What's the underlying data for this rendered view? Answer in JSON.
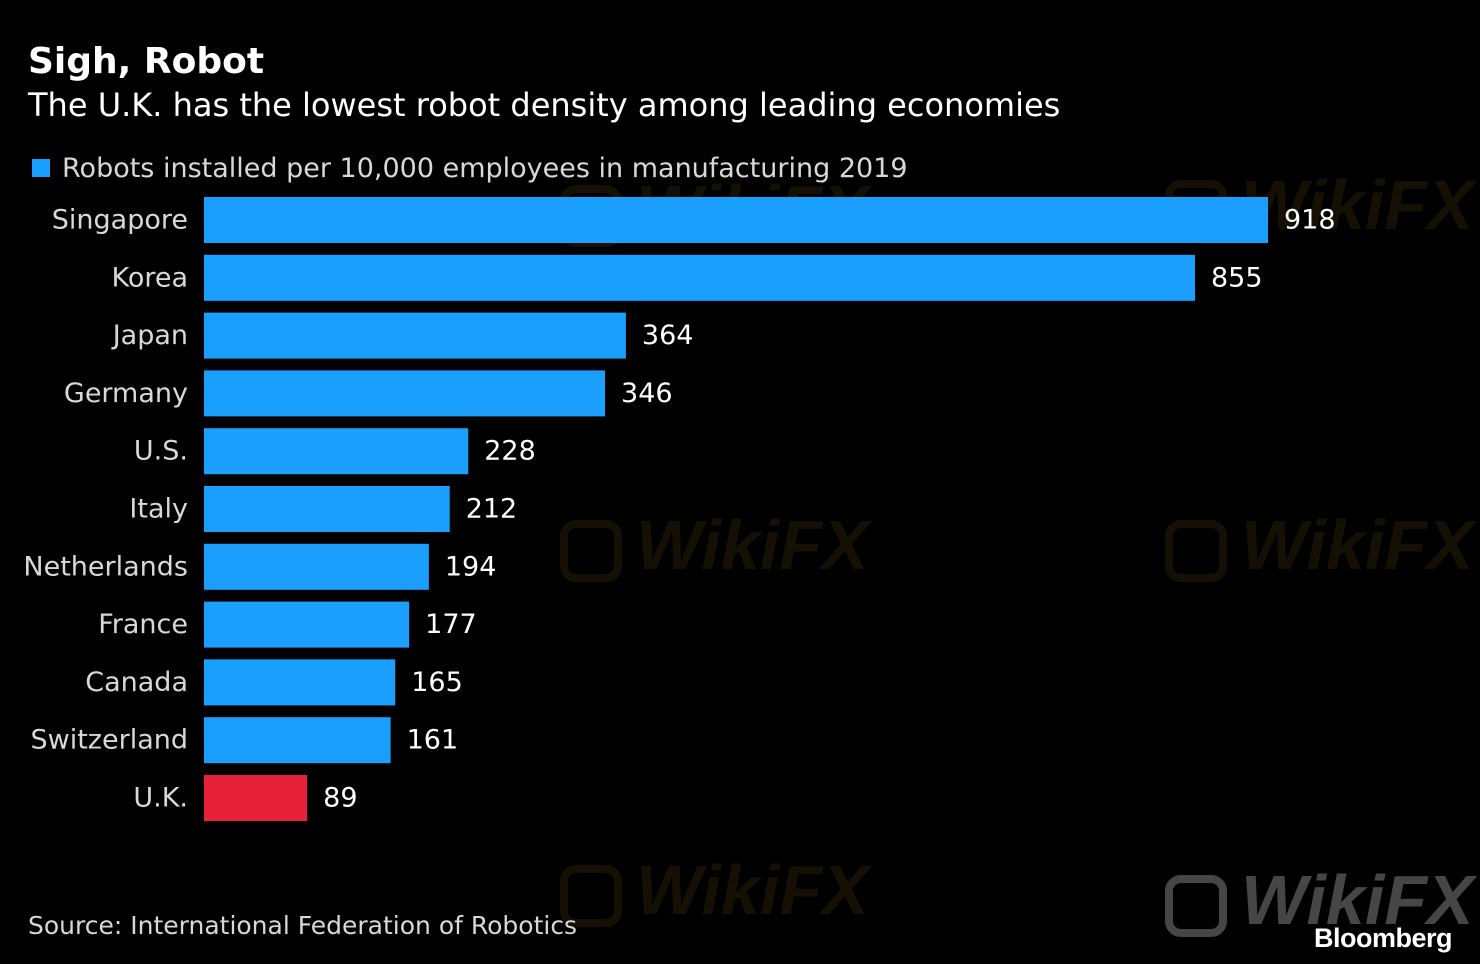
{
  "header": {
    "title": "Sigh, Robot",
    "subtitle": "The U.K. has the lowest robot density among leading economies"
  },
  "legend": {
    "label": "Robots installed per 10,000 employees in manufacturing 2019",
    "color": "#1a9fff"
  },
  "footer": {
    "source": "Source: International Federation of Robotics",
    "brand": "Bloomberg"
  },
  "watermark": {
    "text": "WikiFX"
  },
  "colors": {
    "bar_default": "#1a9fff",
    "bar_highlight": "#e8213a",
    "background": "#000000",
    "label_text": "#d8d8d8",
    "value_text": "#ffffff"
  },
  "chart_data": {
    "type": "bar",
    "orientation": "horizontal",
    "categories": [
      "Singapore",
      "Korea",
      "Japan",
      "Germany",
      "U.S.",
      "Italy",
      "Netherlands",
      "France",
      "Canada",
      "Switzerland",
      "U.K."
    ],
    "values": [
      918,
      855,
      364,
      346,
      228,
      212,
      194,
      177,
      165,
      161,
      89
    ],
    "highlight": [
      "U.K."
    ],
    "title": "Sigh, Robot",
    "subtitle": "The U.K. has the lowest robot density among leading economies",
    "series": [
      {
        "name": "Robots installed per 10,000 employees in manufacturing 2019",
        "values": [
          918,
          855,
          364,
          346,
          228,
          212,
          194,
          177,
          165,
          161,
          89
        ]
      }
    ],
    "xlim": [
      0,
      918
    ],
    "grid": false,
    "legend_position": "top-left",
    "data_labels": true
  }
}
